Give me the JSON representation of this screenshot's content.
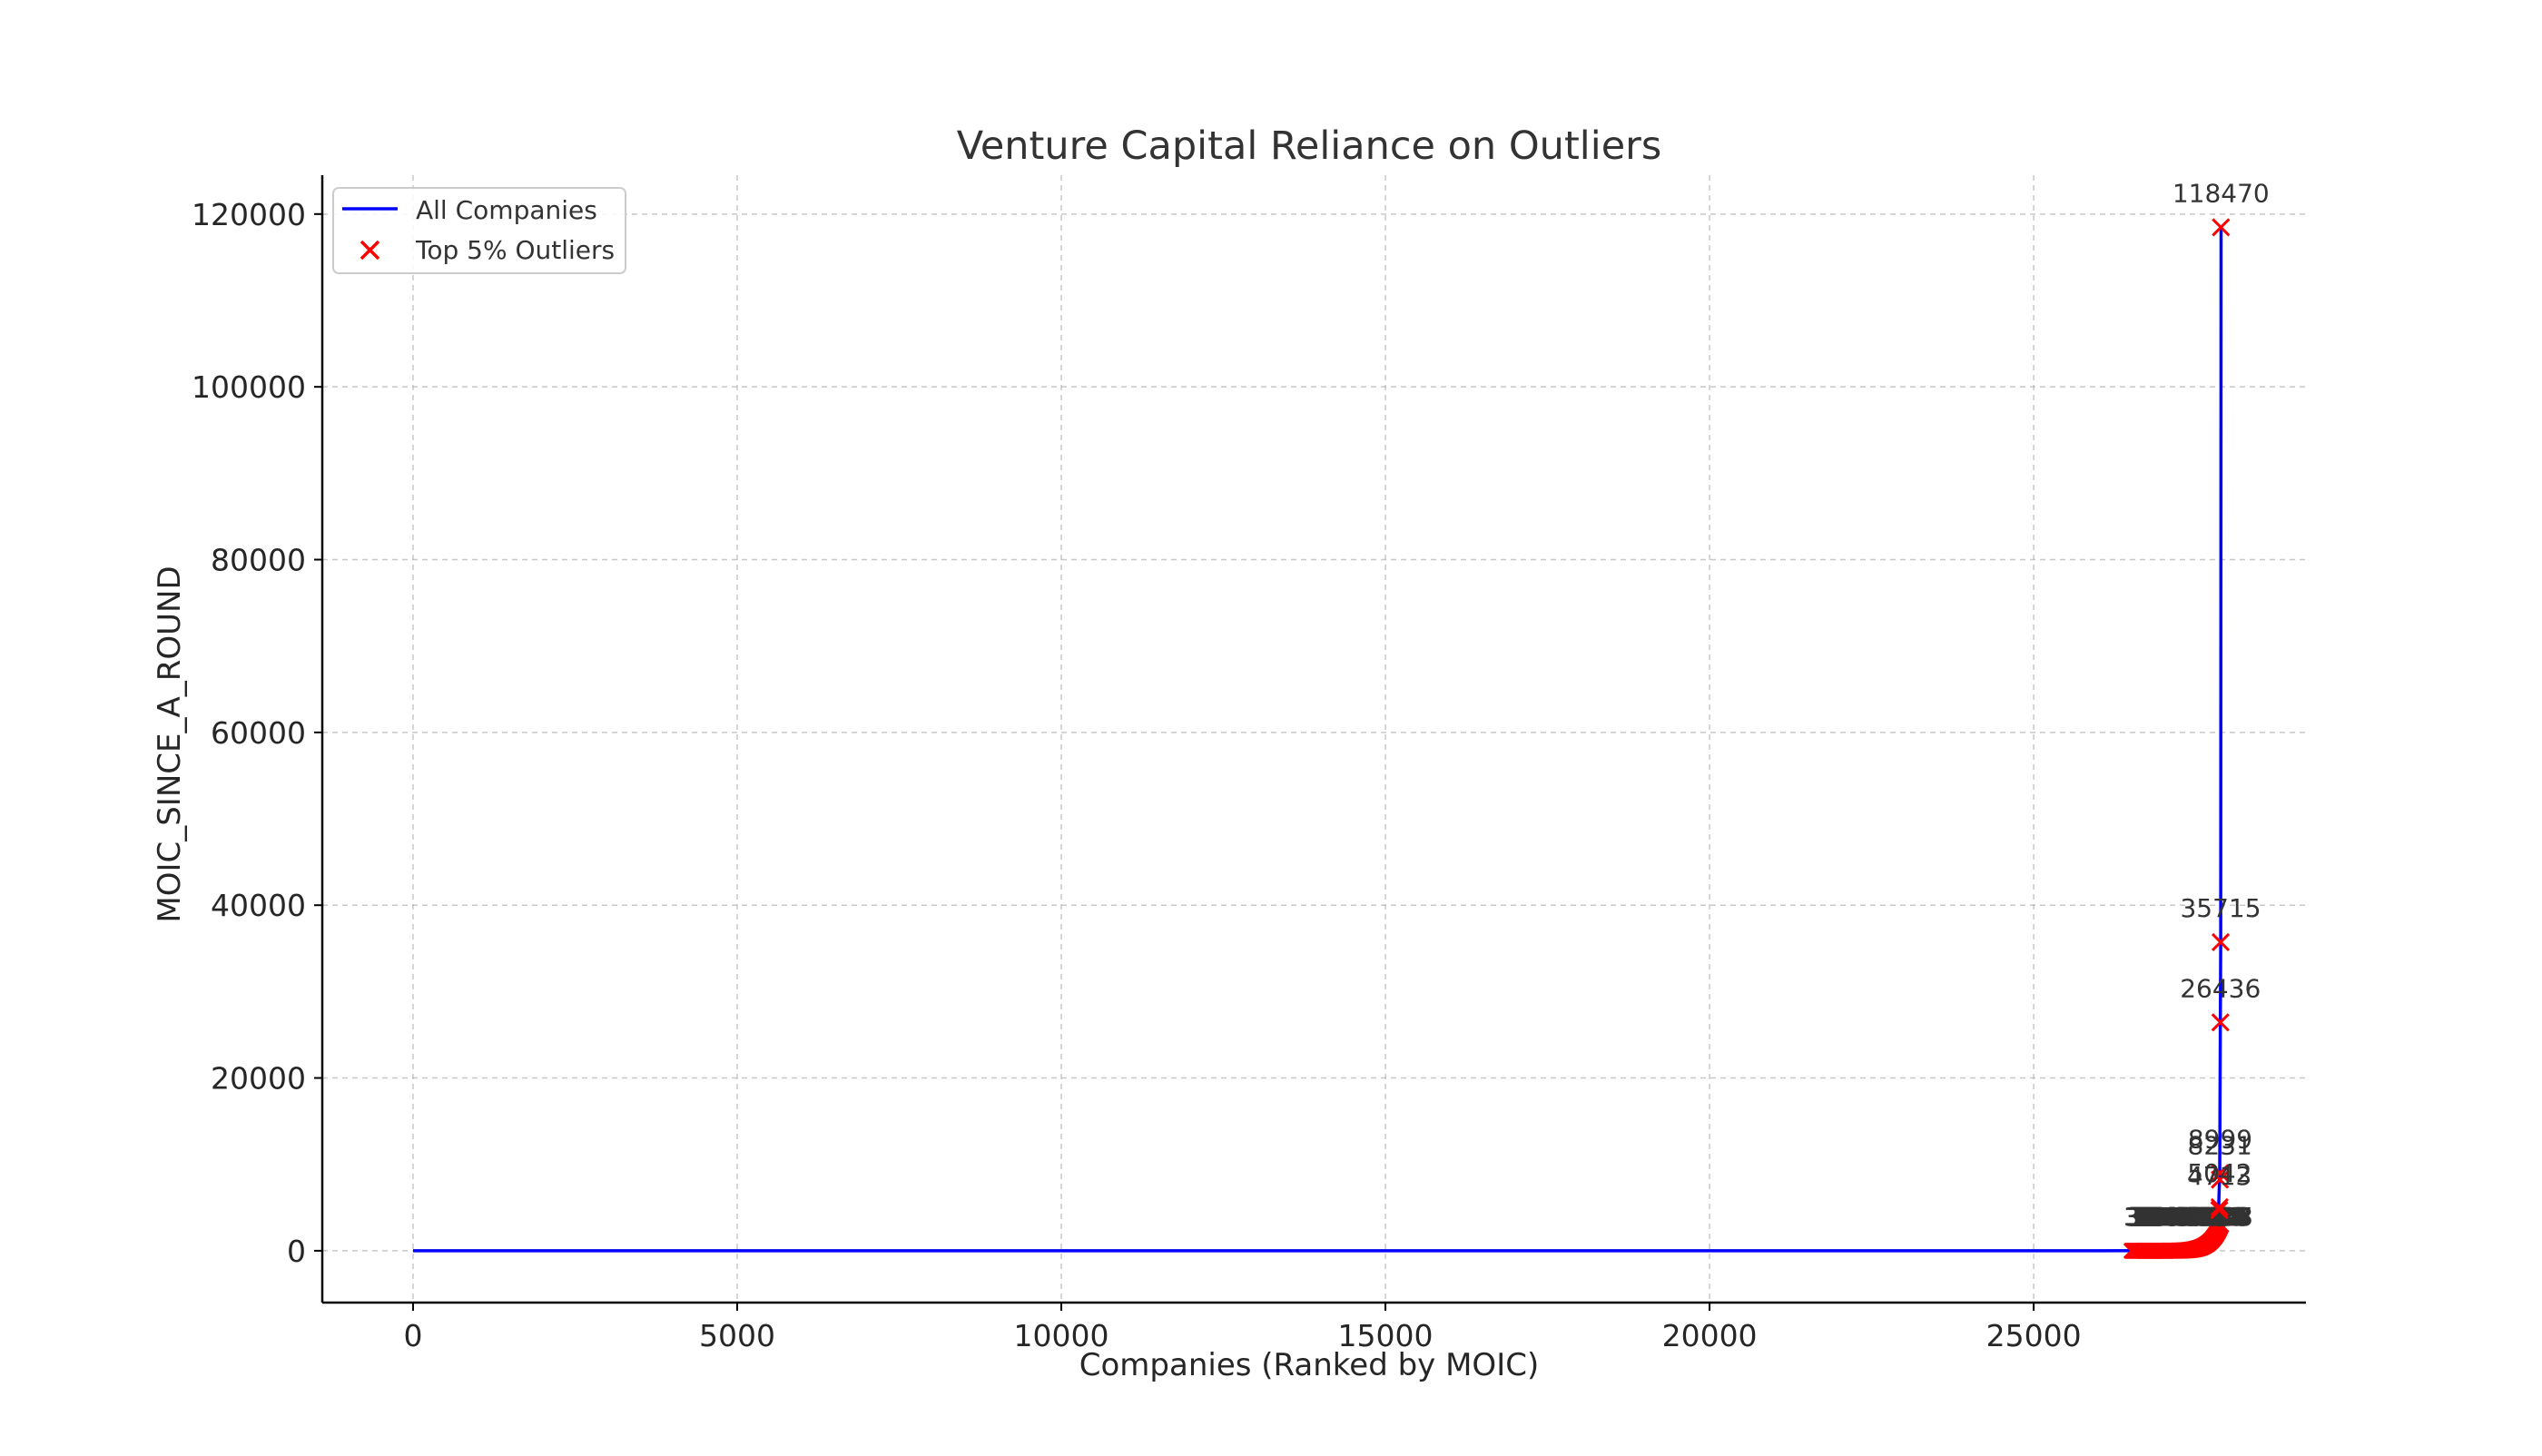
{
  "chart_data": {
    "type": "line",
    "title": "Venture Capital Reliance on Outliers",
    "xlabel": "Companies (Ranked by MOIC)",
    "ylabel": "MOIC_SINCE_A_ROUND",
    "xlim": [
      -1400,
      29200
    ],
    "ylim": [
      -6000,
      124500
    ],
    "x_ticks": [
      0,
      5000,
      10000,
      15000,
      20000,
      25000
    ],
    "y_ticks": [
      0,
      20000,
      40000,
      60000,
      80000,
      100000,
      120000
    ],
    "grid": true,
    "legend_position": "top-left",
    "series": [
      {
        "name": "All Companies",
        "kind": "line",
        "color": "#0000ff",
        "points": [
          [
            0,
            0
          ],
          [
            26000,
            0
          ],
          [
            27000,
            10
          ],
          [
            27600,
            80
          ],
          [
            27750,
            400
          ],
          [
            27840,
            2000
          ],
          [
            27870,
            9000
          ],
          [
            27880,
            26436
          ],
          [
            27885,
            35715
          ],
          [
            27890,
            118470
          ]
        ]
      },
      {
        "name": "Top 5% Outliers",
        "kind": "scatter",
        "marker": "x",
        "color": "#ff0000",
        "labeled_points": [
          {
            "x": 27888,
            "y": 118470,
            "label": "118470"
          },
          {
            "x": 27884,
            "y": 35715,
            "label": "35715"
          },
          {
            "x": 27880,
            "y": 26436,
            "label": "26436"
          },
          {
            "x": 27876,
            "y": 8999,
            "label": "8999"
          },
          {
            "x": 27872,
            "y": 8231,
            "label": "8231"
          },
          {
            "x": 27868,
            "y": 5042,
            "label": "5042"
          },
          {
            "x": 27864,
            "y": 4713,
            "label": "4713"
          }
        ],
        "dense_range": {
          "x_start": 26510,
          "x_end": 27890,
          "y_max": 3000
        }
      }
    ]
  }
}
